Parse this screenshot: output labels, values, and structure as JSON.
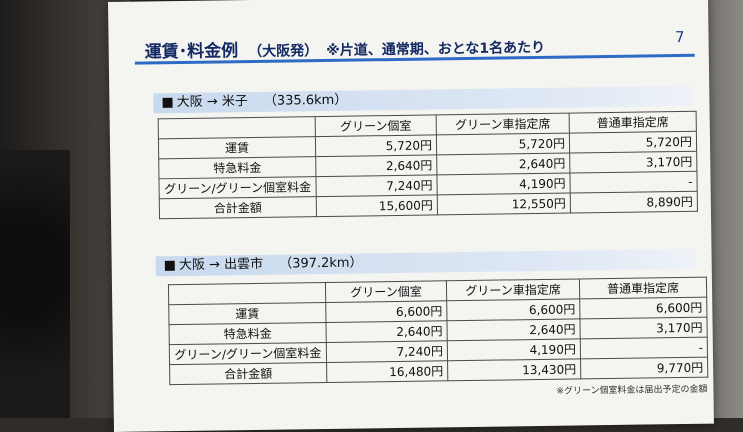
{
  "page": {
    "title": "運賃･料金例",
    "subtitle": "（大阪発）",
    "note": "※片道、通常期、おとな1名あたり",
    "page_number": "7",
    "footnote": "※グリーン個室料金は届出予定の金額"
  },
  "columns": [
    "グリーン個室",
    "グリーン車指定席",
    "普通車指定席"
  ],
  "routes": [
    {
      "bullet": "■",
      "name": "大阪 → 米子",
      "distance": "（335.6km）",
      "rows": [
        {
          "label": "運賃",
          "values": [
            "5,720円",
            "5,720円",
            "5,720円"
          ]
        },
        {
          "label": "特急料金",
          "values": [
            "2,640円",
            "2,640円",
            "3,170円"
          ]
        },
        {
          "label": "グリーン/グリーン個室料金",
          "values": [
            "7,240円",
            "4,190円",
            "-"
          ]
        },
        {
          "label": "合計金額",
          "values": [
            "15,600円",
            "12,550円",
            "8,890円"
          ]
        }
      ]
    },
    {
      "bullet": "■",
      "name": "大阪 → 出雲市",
      "distance": "（397.2km）",
      "rows": [
        {
          "label": "運賃",
          "values": [
            "6,600円",
            "6,600円",
            "6,600円"
          ]
        },
        {
          "label": "特急料金",
          "values": [
            "2,640円",
            "2,640円",
            "3,170円"
          ]
        },
        {
          "label": "グリーン/グリーン個室料金",
          "values": [
            "7,240円",
            "4,190円",
            "-"
          ]
        },
        {
          "label": "合計金額",
          "values": [
            "16,480円",
            "13,430円",
            "9,770円"
          ]
        }
      ]
    }
  ]
}
